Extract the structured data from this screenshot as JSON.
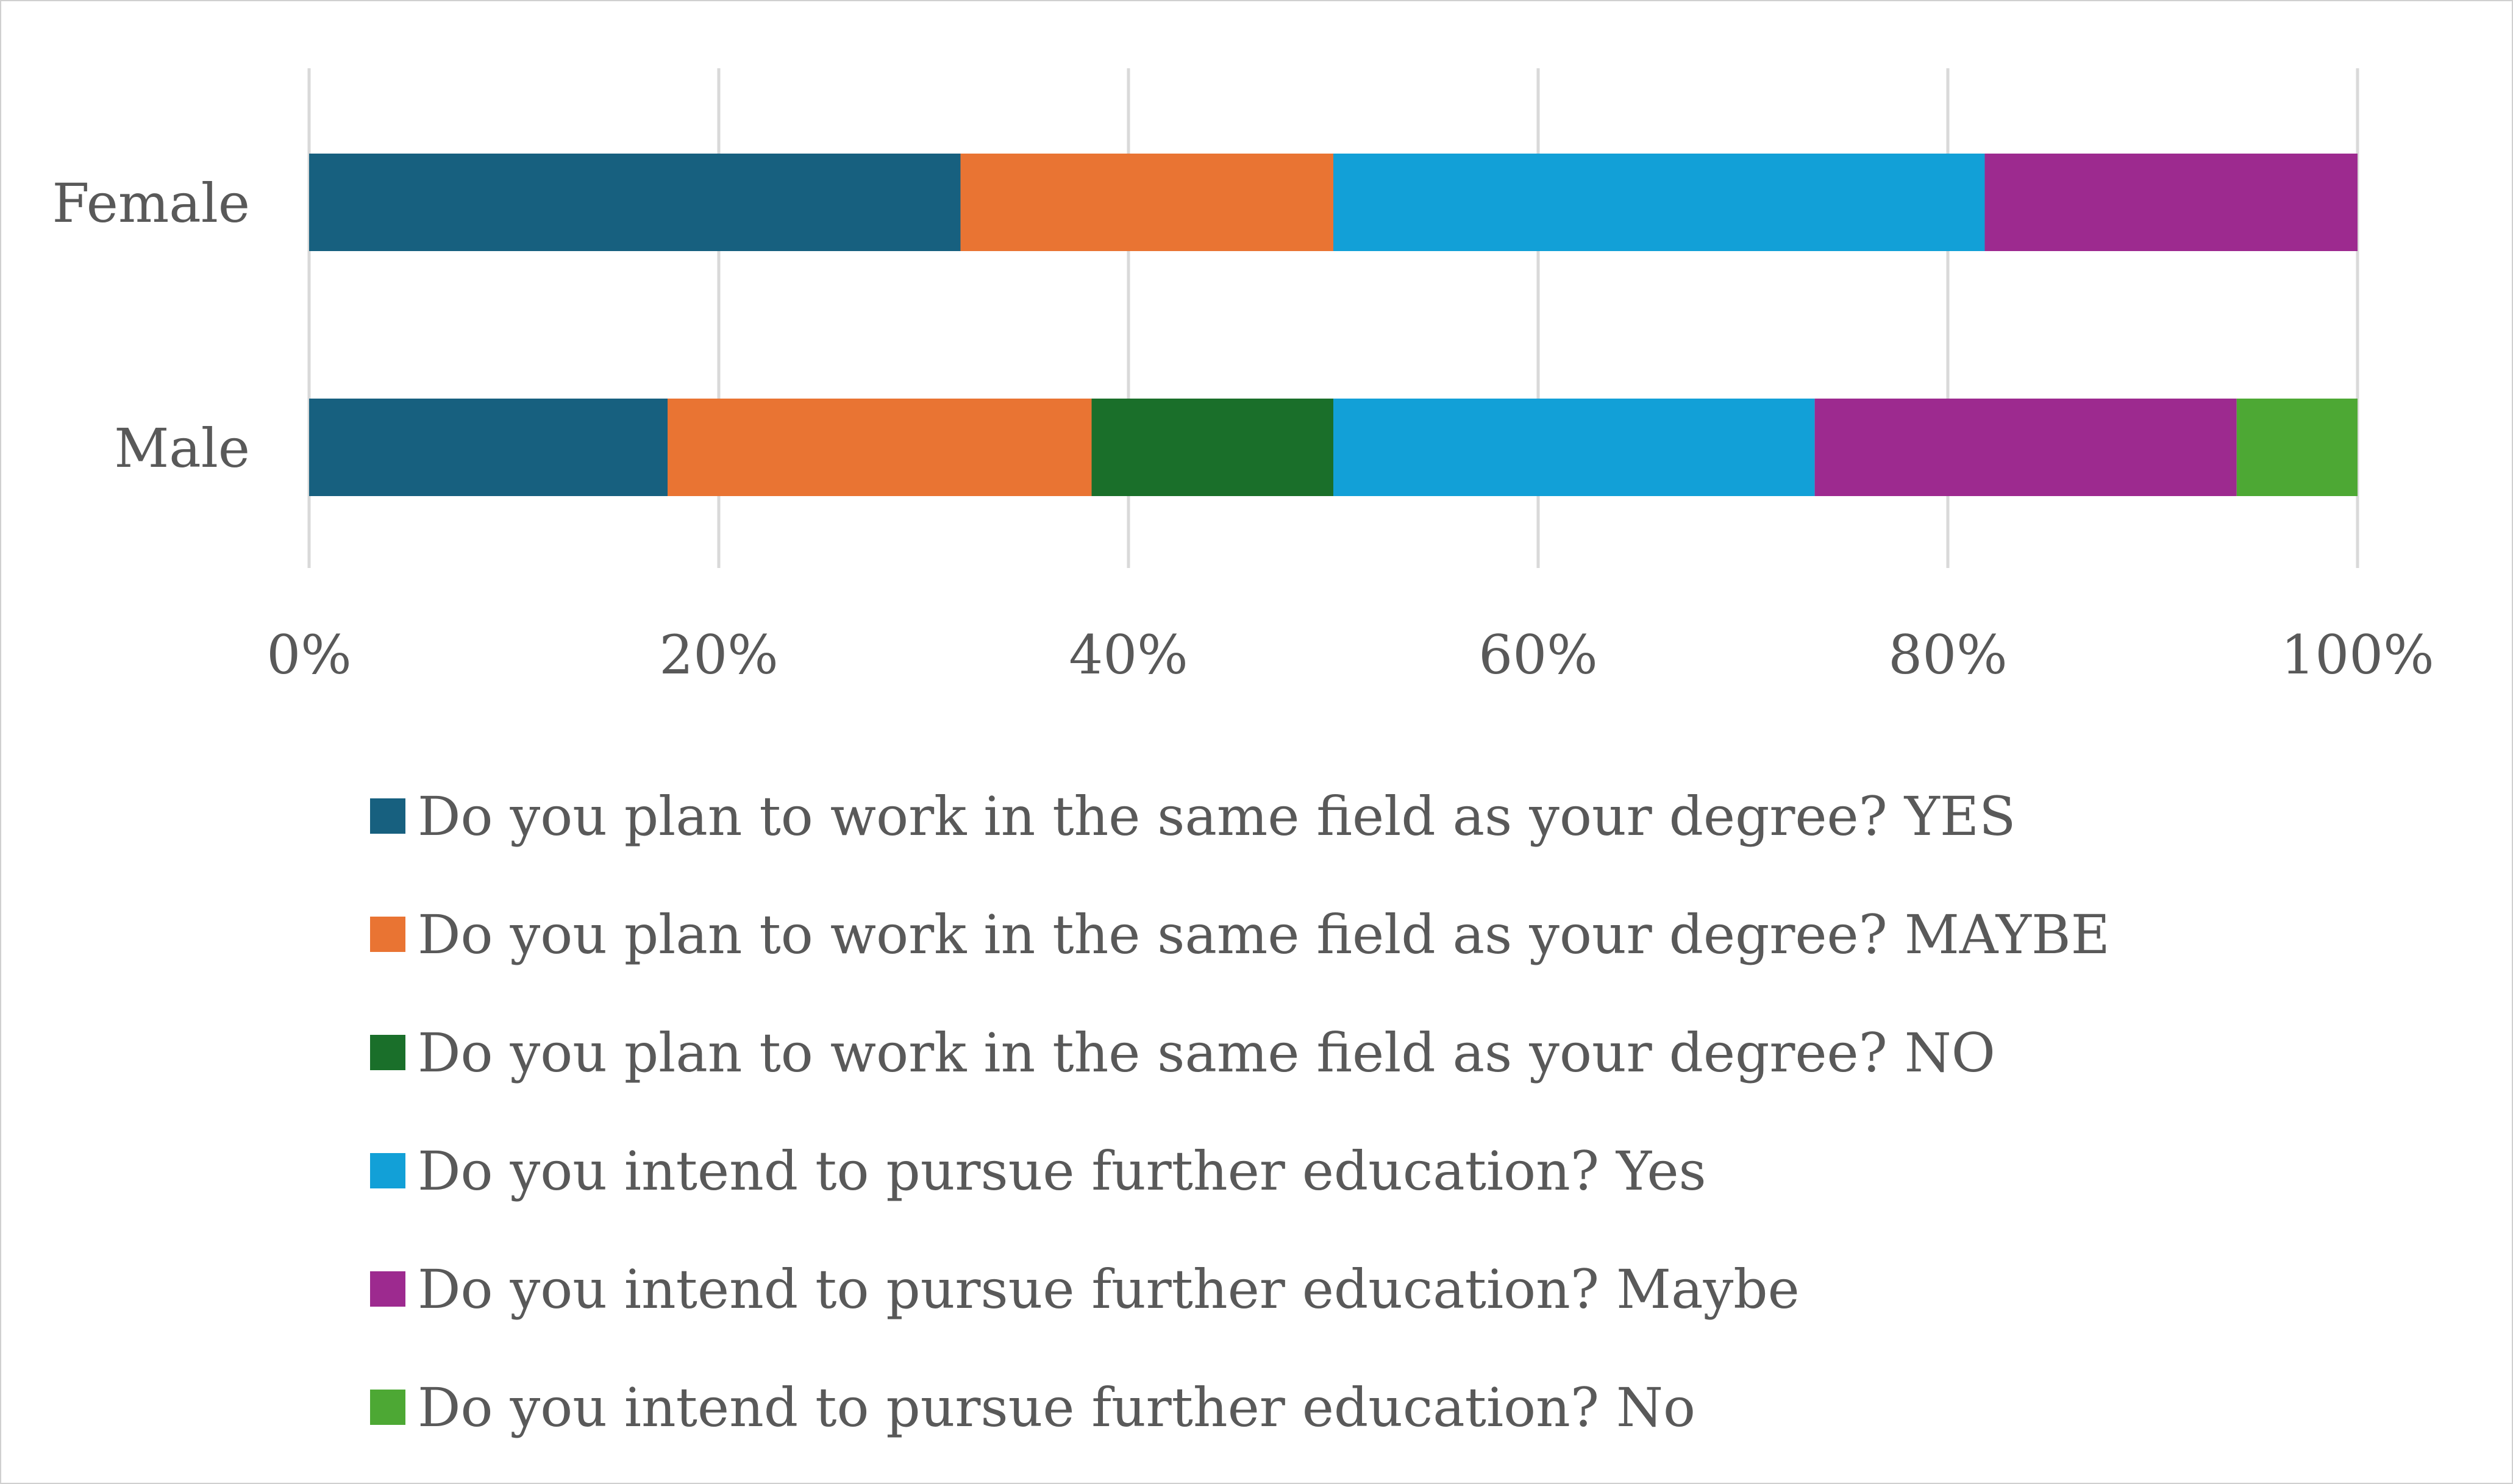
{
  "chart_data": {
    "type": "bar",
    "orientation": "horizontal",
    "stacked": "percent",
    "categories": [
      "Female",
      "Male"
    ],
    "series": [
      {
        "name": "Do you plan to work in the same field as your degree? YES",
        "color": "#17607F",
        "values": [
          31.8,
          17.5
        ]
      },
      {
        "name": "Do you plan to work in the same field as your degree? MAYBE",
        "color": "#E97433",
        "values": [
          18.2,
          20.7
        ]
      },
      {
        "name": "Do you plan to work in the same field as your degree? NO",
        "color": "#1A6F2A",
        "values": [
          0,
          11.8
        ]
      },
      {
        "name": "Do you intend to pursue further education? Yes",
        "color": "#12A0D7",
        "values": [
          31.8,
          23.5
        ]
      },
      {
        "name": "Do you intend to pursue further education? Maybe",
        "color": "#9D2A8F",
        "values": [
          18.2,
          20.6
        ]
      },
      {
        "name": "Do you intend to pursue further education? No",
        "color": "#4DA834",
        "values": [
          0,
          5.9
        ]
      }
    ],
    "x_ticks": [
      "0%",
      "20%",
      "40%",
      "60%",
      "80%",
      "100%"
    ],
    "xlim": [
      0,
      100
    ],
    "grid": "vertical",
    "legend_position": "bottom",
    "title": "",
    "xlabel": "",
    "ylabel": ""
  }
}
